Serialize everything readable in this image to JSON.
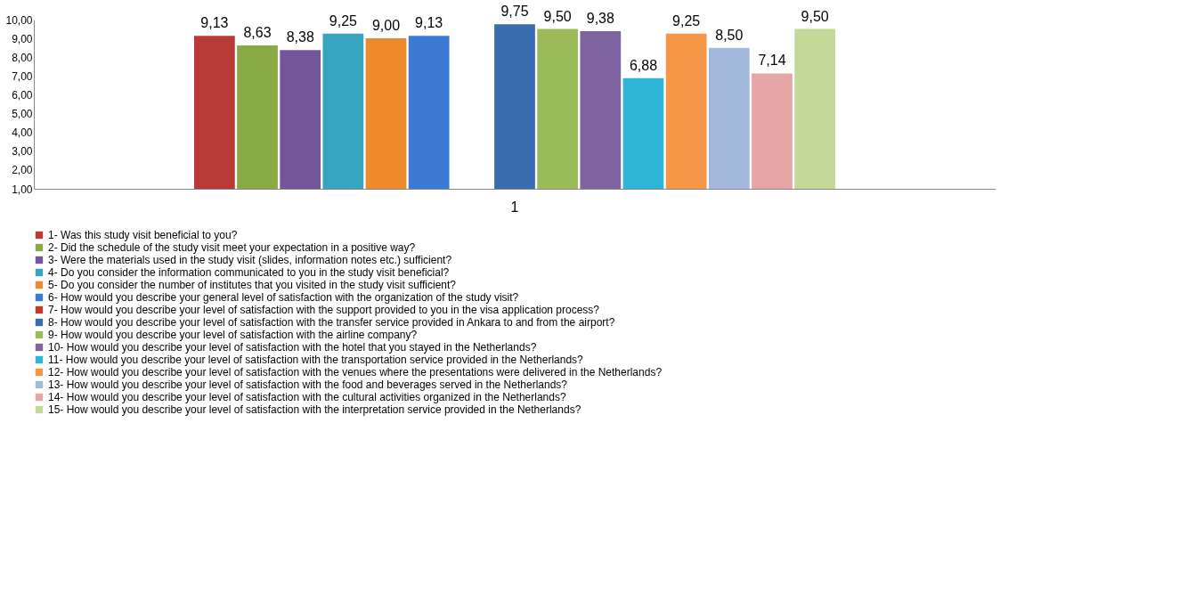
{
  "chart_data": {
    "type": "bar",
    "categories": [
      "1"
    ],
    "series": [
      {
        "name": "1- Was this study visit beneficial to you?",
        "color": "#b83a36",
        "values": [
          9.13
        ]
      },
      {
        "name": "2- Did the schedule of the study visit meet your expectation in a positive way?",
        "color": "#8aaa46",
        "values": [
          8.63
        ]
      },
      {
        "name": "3- Were the materials used in the study visit (slides, information notes etc.) sufficient?",
        "color": "#73559a",
        "values": [
          8.38
        ]
      },
      {
        "name": "4- Do you consider the information communicated to you in the study visit beneficial?",
        "color": "#38a5c0",
        "values": [
          9.25
        ]
      },
      {
        "name": "5- Do you consider the number of institutes that you visited in the study visit sufficient?",
        "color": "#ec8a2c",
        "values": [
          9.0
        ]
      },
      {
        "name": "6- How would you describe your general level of satisfaction with the organization of the study visit?",
        "color": "#3b7bd6",
        "values": [
          9.13
        ]
      },
      {
        "name": "7- How would you describe your level of satisfaction with the support provided to you in the visa application process?",
        "color": "#c0392b",
        "values": [
          null
        ]
      },
      {
        "name": "8- How would you describe your level of satisfaction with the transfer service provided in Ankara to and from the airport?",
        "color": "#3a6cb0",
        "values": [
          9.75
        ]
      },
      {
        "name": "9- How would you describe your level of satisfaction with the airline company?",
        "color": "#9bbb59",
        "values": [
          9.5
        ]
      },
      {
        "name": "10- How would you describe your level of satisfaction with the hotel that you stayed in the Netherlands?",
        "color": "#8064a2",
        "values": [
          9.38
        ]
      },
      {
        "name": "11- How would you describe your level of satisfaction with the transportation service provided in the Netherlands?",
        "color": "#2fb6d6",
        "values": [
          6.88
        ]
      },
      {
        "name": "12- How would you describe your level of satisfaction with the venues where the presentations were delivered in the Netherlands?",
        "color": "#f79646",
        "values": [
          9.25
        ]
      },
      {
        "name": "13- How would you describe your level of satisfaction with the food and beverages served in the Netherlands?",
        "color": "#a3b9dc",
        "values": [
          8.5
        ]
      },
      {
        "name": "14- How would you describe your level of satisfaction with the cultural activities organized in the Netherlands?",
        "color": "#e6a6a6",
        "values": [
          7.14
        ]
      },
      {
        "name": "15- How would you describe your level of satisfaction with the interpretation service provided in the Netherlands?",
        "color": "#c4d89a",
        "values": [
          9.5
        ]
      }
    ],
    "value_labels": [
      "9,13",
      "8,63",
      "8,38",
      "9,25",
      "9,00",
      "9,13",
      null,
      "9,75",
      "9,50",
      "9,38",
      "6,88",
      "9,25",
      "8,50",
      "7,14",
      "9,50"
    ],
    "ylim": [
      1,
      10
    ],
    "yticks": [
      {
        "value": 1,
        "label": "1,00"
      },
      {
        "value": 2,
        "label": "2,00"
      },
      {
        "value": 3,
        "label": "3,00"
      },
      {
        "value": 4,
        "label": "4,00"
      },
      {
        "value": 5,
        "label": "5,00"
      },
      {
        "value": 6,
        "label": "6,00"
      },
      {
        "value": 7,
        "label": "7,00"
      },
      {
        "value": 8,
        "label": "8,00"
      },
      {
        "value": 9,
        "label": "9,00"
      },
      {
        "value": 10,
        "label": "10,00"
      }
    ],
    "grid": false,
    "legend": "bottom"
  }
}
